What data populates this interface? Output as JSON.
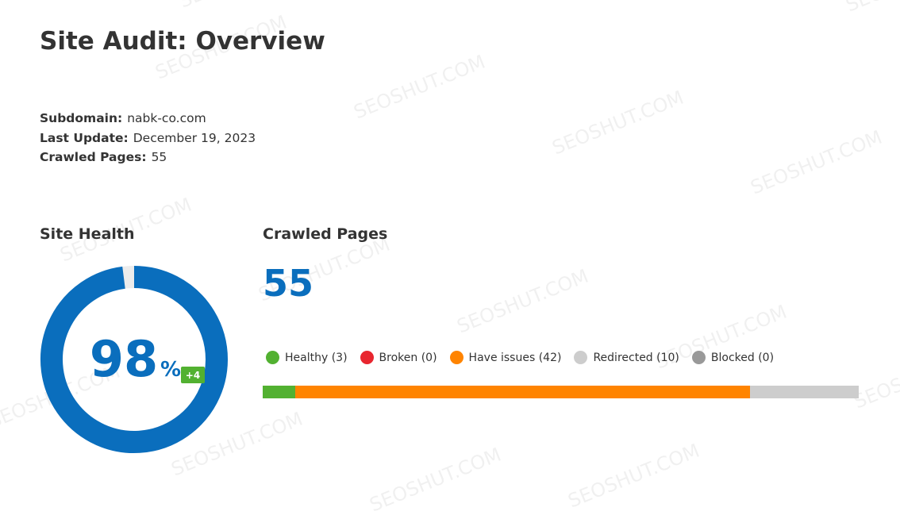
{
  "header": {
    "title": "Site Audit: Overview"
  },
  "info": [
    {
      "label": "Subdomain:",
      "value": "nabk-co.com"
    },
    {
      "label": "Last Update:",
      "value": "December 19, 2023"
    },
    {
      "label": "Crawled Pages:",
      "value": "55"
    }
  ],
  "site_health": {
    "title": "Site Health",
    "value": 98,
    "unit": "%",
    "change": "+4",
    "color": "#0a6ebd",
    "track_color": "#ececec",
    "change_color": "#52b131"
  },
  "crawled_pages": {
    "title": "Crawled Pages",
    "total": 55,
    "categories": [
      {
        "label": "Healthy (3)",
        "count": 3,
        "color": "#52b131"
      },
      {
        "label": "Broken (0)",
        "count": 0,
        "color": "#e8262f"
      },
      {
        "label": "Have issues (42)",
        "count": 42,
        "color": "#ff8400"
      },
      {
        "label": "Redirected (10)",
        "count": 10,
        "color": "#cdcdcd"
      },
      {
        "label": "Blocked (0)",
        "count": 0,
        "color": "#999999"
      }
    ]
  },
  "watermark": "SEOSHUT.COM"
}
